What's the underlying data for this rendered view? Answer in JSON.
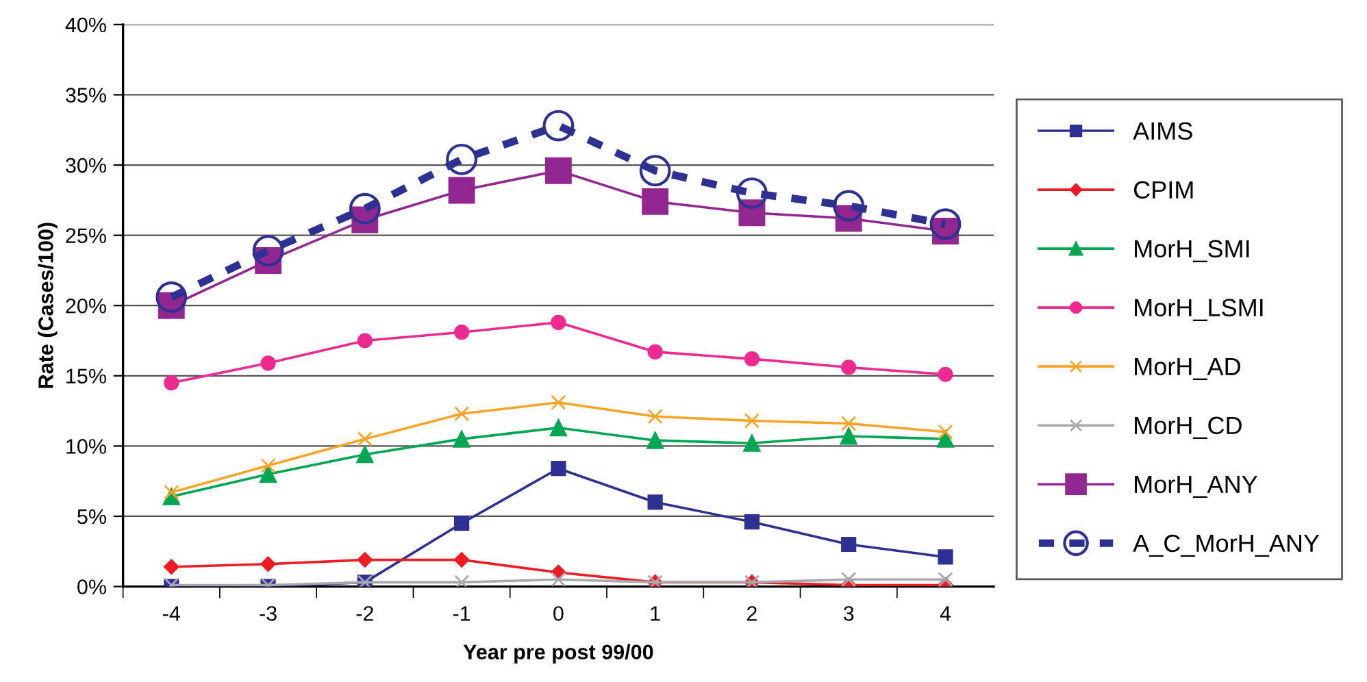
{
  "chart_data": {
    "type": "line",
    "xlabel": "Year pre post 99/00",
    "ylabel": "Rate (Cases/100)",
    "categories": [
      "-4",
      "-3",
      "-2",
      "-1",
      "0",
      "1",
      "2",
      "3",
      "4"
    ],
    "ylim": [
      0,
      40
    ],
    "yticks": [
      {
        "value": 0,
        "label": "0%"
      },
      {
        "value": 5,
        "label": "5%"
      },
      {
        "value": 10,
        "label": "10%"
      },
      {
        "value": 15,
        "label": "15%"
      },
      {
        "value": 20,
        "label": "20%"
      },
      {
        "value": 25,
        "label": "25%"
      },
      {
        "value": 30,
        "label": "30%"
      },
      {
        "value": 35,
        "label": "35%"
      },
      {
        "value": 40,
        "label": "40%"
      }
    ],
    "grid": "y",
    "legend": "right",
    "series": [
      {
        "name": "AIMS",
        "color": "#2e3192",
        "marker": "square",
        "line_style": "solid",
        "values": [
          0,
          0,
          0.3,
          4.5,
          8.4,
          6.0,
          4.6,
          3.0,
          2.1
        ]
      },
      {
        "name": "CPIM",
        "color": "#ed1c24",
        "marker": "diamond",
        "line_style": "solid",
        "values": [
          1.4,
          1.6,
          1.9,
          1.9,
          1.0,
          0.3,
          0.3,
          0.1,
          0.1
        ]
      },
      {
        "name": "MorH_SMI",
        "color": "#00a651",
        "marker": "triangle",
        "line_style": "solid",
        "values": [
          6.4,
          8.0,
          9.4,
          10.5,
          11.3,
          10.4,
          10.2,
          10.7,
          10.5
        ]
      },
      {
        "name": "MorH_LSMI",
        "color": "#ec2a90",
        "marker": "circle",
        "line_style": "solid",
        "values": [
          14.5,
          15.9,
          17.5,
          18.1,
          18.8,
          16.7,
          16.2,
          15.6,
          15.1
        ]
      },
      {
        "name": "MorH_AD",
        "color": "#f7a428",
        "marker": "cross",
        "line_style": "solid",
        "values": [
          6.7,
          8.6,
          10.5,
          12.3,
          13.1,
          12.1,
          11.8,
          11.6,
          11.0
        ]
      },
      {
        "name": "MorH_CD",
        "color": "#a7a9ac",
        "marker": "cross",
        "line_style": "solid",
        "values": [
          0.1,
          0.1,
          0.3,
          0.3,
          0.5,
          0.3,
          0.3,
          0.5,
          0.5
        ]
      },
      {
        "name": "MorH_ANY",
        "color": "#92278f",
        "marker": "square",
        "line_style": "solid",
        "values": [
          20.0,
          23.2,
          26.1,
          28.2,
          29.6,
          27.4,
          26.6,
          26.2,
          25.3
        ]
      },
      {
        "name": "A_C_MorH_ANY",
        "color": "#2e3192",
        "marker": "circle",
        "line_style": "dashed",
        "values": [
          20.6,
          23.9,
          26.9,
          30.4,
          32.8,
          29.6,
          28.0,
          27.1,
          25.8
        ]
      }
    ]
  }
}
